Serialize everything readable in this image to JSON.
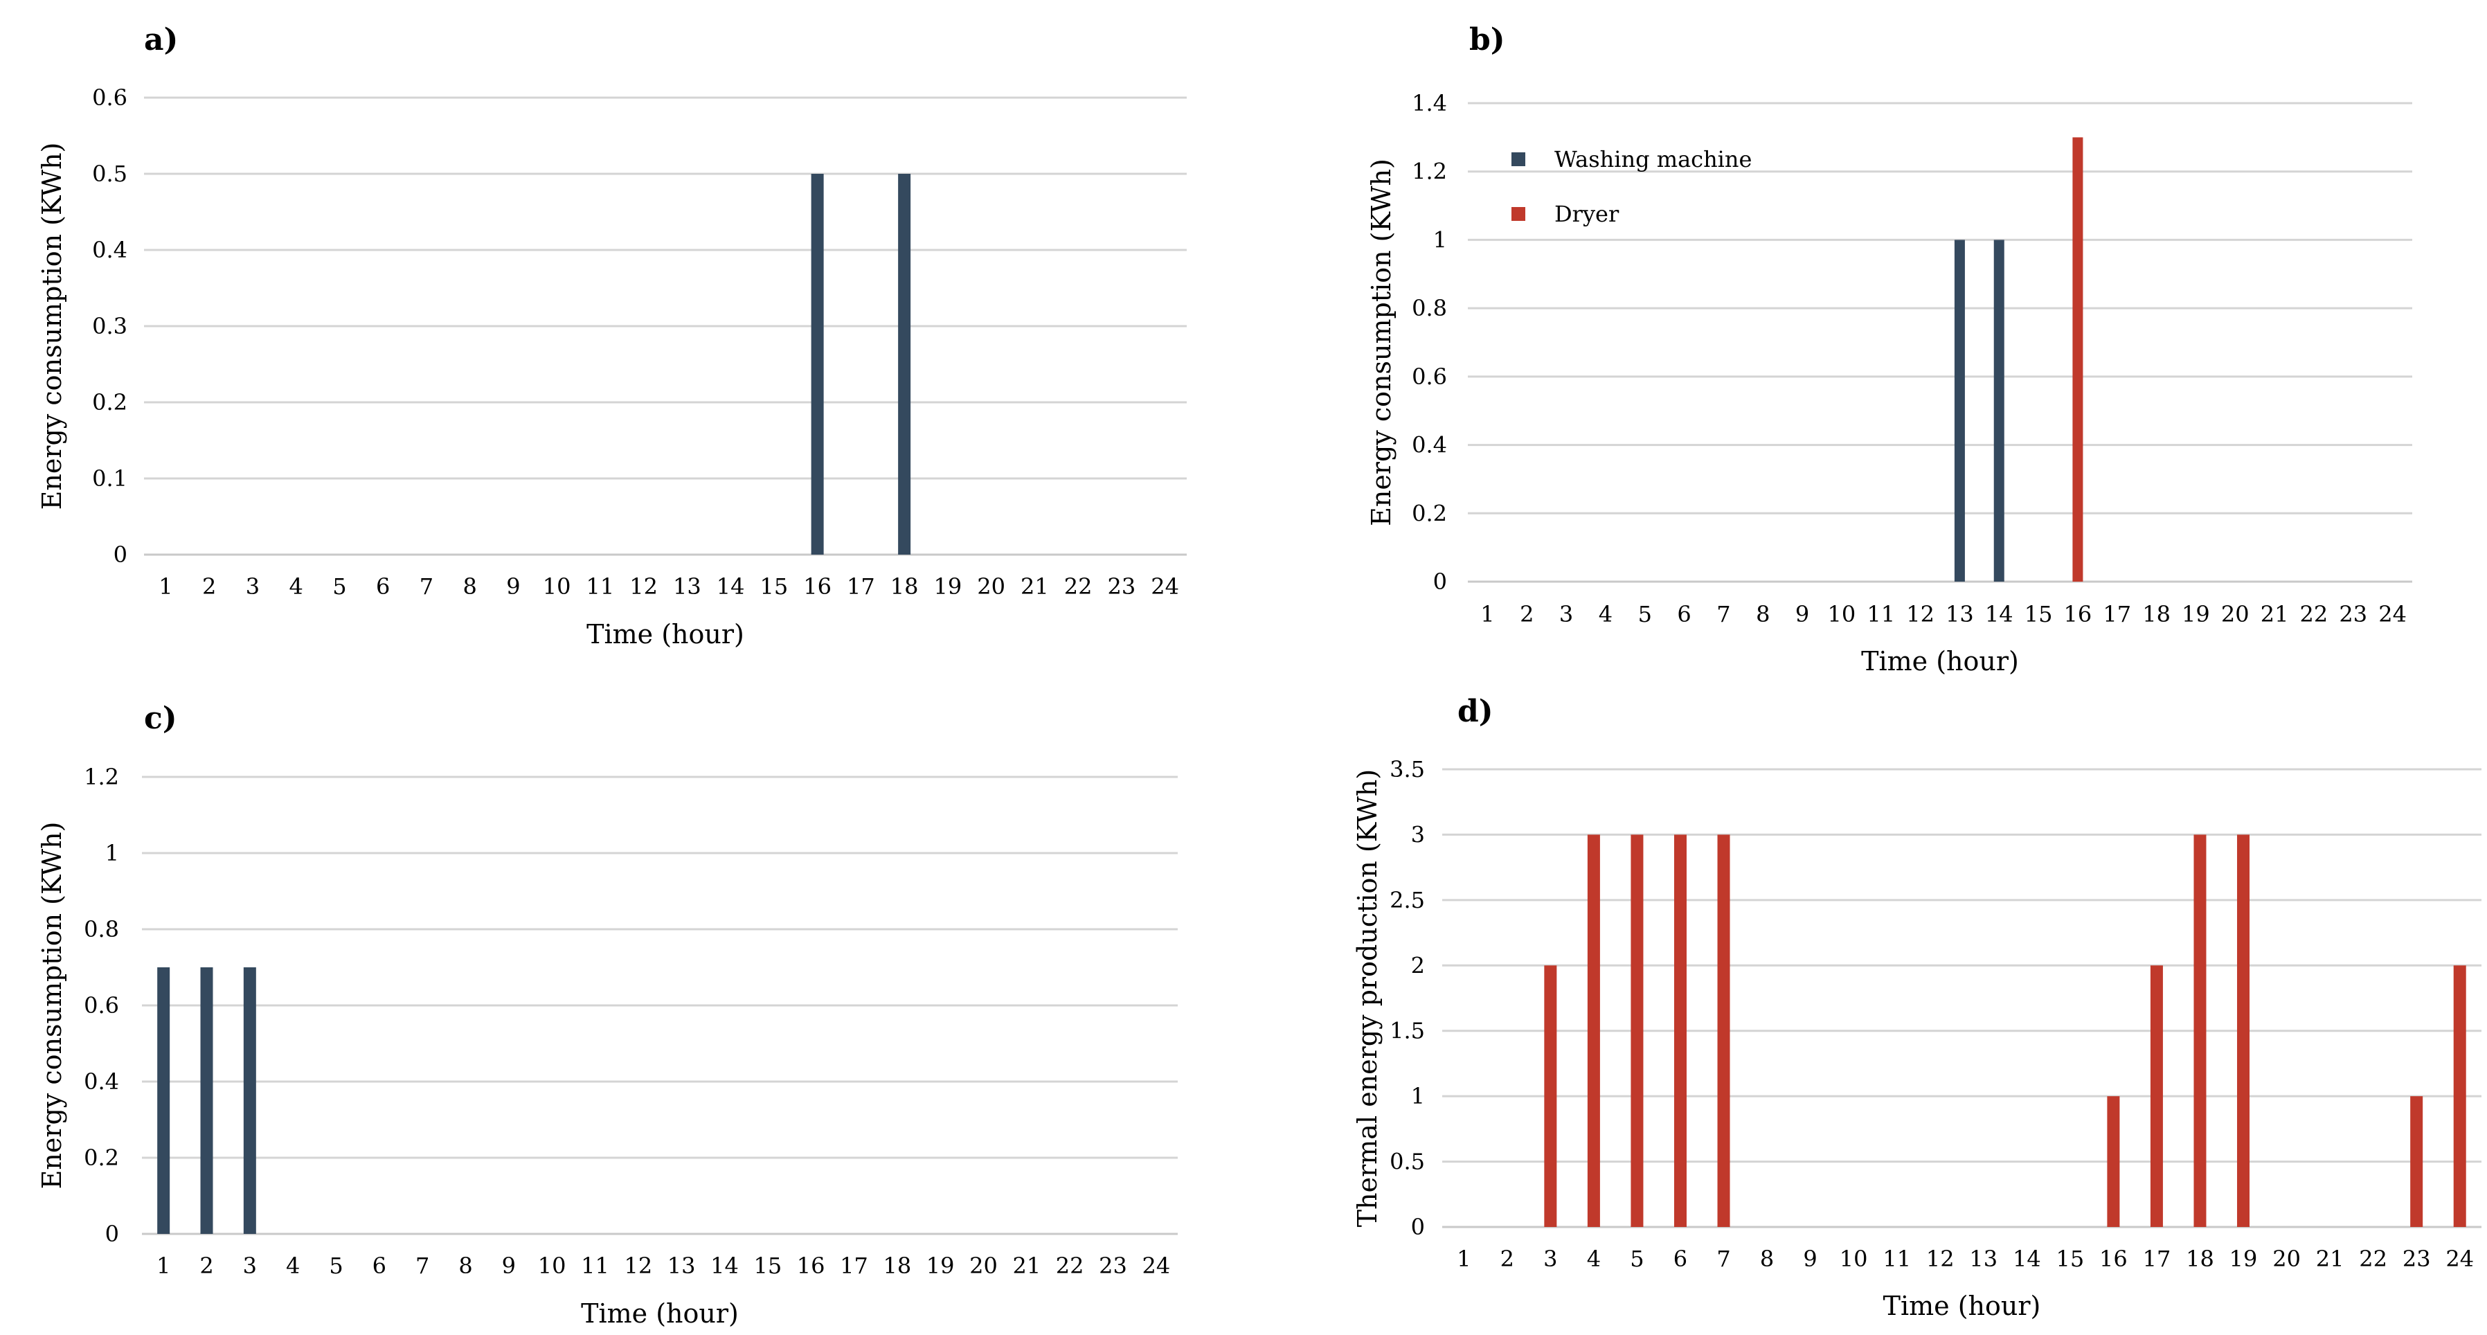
{
  "colors": {
    "navy": "#34495e",
    "red": "#c0392b"
  },
  "chart_data": [
    {
      "id": "a",
      "panel_label": "a)",
      "type": "bar",
      "xlabel": "Time (hour)",
      "ylabel": "Energy consumption (KWh)",
      "ylim": [
        0,
        0.6
      ],
      "yticks": [
        0,
        0.1,
        0.2,
        0.3,
        0.4,
        0.5,
        0.6
      ],
      "ytick_labels": [
        "0",
        "0.1",
        "0.2",
        "0.3",
        "0.4",
        "0.5",
        "0.6"
      ],
      "categories": [
        "1",
        "2",
        "3",
        "4",
        "5",
        "6",
        "7",
        "8",
        "9",
        "10",
        "11",
        "12",
        "13",
        "14",
        "15",
        "16",
        "17",
        "18",
        "19",
        "20",
        "21",
        "22",
        "23",
        "24"
      ],
      "grid": true,
      "legend": null,
      "series": [
        {
          "name": "Energy consumption",
          "color": "#34495e",
          "values": [
            0,
            0,
            0,
            0,
            0,
            0,
            0,
            0,
            0,
            0,
            0,
            0,
            0,
            0,
            0,
            0.5,
            0,
            0.5,
            0,
            0,
            0,
            0,
            0,
            0
          ]
        }
      ]
    },
    {
      "id": "b",
      "panel_label": "b)",
      "type": "bar",
      "xlabel": "Time (hour)",
      "ylabel": "Energy consumption (KWh)",
      "ylim": [
        0,
        1.4
      ],
      "yticks": [
        0,
        0.2,
        0.4,
        0.6,
        0.8,
        1,
        1.2,
        1.4
      ],
      "ytick_labels": [
        "0",
        "0.2",
        "0.4",
        "0.6",
        "0.8",
        "1",
        "1.2",
        "1.4"
      ],
      "categories": [
        "1",
        "2",
        "3",
        "4",
        "5",
        "6",
        "7",
        "8",
        "9",
        "10",
        "11",
        "12",
        "13",
        "14",
        "15",
        "16",
        "17",
        "18",
        "19",
        "20",
        "21",
        "22",
        "23",
        "24"
      ],
      "grid": true,
      "legend": "top-left",
      "series": [
        {
          "name": "Washing machine",
          "color": "#34495e",
          "values": [
            0,
            0,
            0,
            0,
            0,
            0,
            0,
            0,
            0,
            0,
            0,
            0,
            1,
            1,
            0,
            0,
            0,
            0,
            0,
            0,
            0,
            0,
            0,
            0
          ]
        },
        {
          "name": "Dryer",
          "color": "#c0392b",
          "values": [
            0,
            0,
            0,
            0,
            0,
            0,
            0,
            0,
            0,
            0,
            0,
            0,
            0,
            0,
            0,
            1.3,
            0,
            0,
            0,
            0,
            0,
            0,
            0,
            0
          ]
        }
      ]
    },
    {
      "id": "c",
      "panel_label": "c)",
      "type": "bar",
      "xlabel": "Time (hour)",
      "ylabel": "Energy consumption (KWh)",
      "ylim": [
        0,
        1.2
      ],
      "yticks": [
        0,
        0.2,
        0.4,
        0.6,
        0.8,
        1,
        1.2
      ],
      "ytick_labels": [
        "0",
        "0.2",
        "0.4",
        "0.6",
        "0.8",
        "1",
        "1.2"
      ],
      "categories": [
        "1",
        "2",
        "3",
        "4",
        "5",
        "6",
        "7",
        "8",
        "9",
        "10",
        "11",
        "12",
        "13",
        "14",
        "15",
        "16",
        "17",
        "18",
        "19",
        "20",
        "21",
        "22",
        "23",
        "24"
      ],
      "grid": true,
      "legend": null,
      "series": [
        {
          "name": "Energy consumption",
          "color": "#34495e",
          "values": [
            0.7,
            0.7,
            0.7,
            0,
            0,
            0,
            0,
            0,
            0,
            0,
            0,
            0,
            0,
            0,
            0,
            0,
            0,
            0,
            0,
            0,
            0,
            0,
            0,
            0
          ]
        }
      ]
    },
    {
      "id": "d",
      "panel_label": "d)",
      "type": "bar",
      "xlabel": "Time (hour)",
      "ylabel": "Thermal energy production (KWh)",
      "ylim": [
        0,
        3.5
      ],
      "yticks": [
        0,
        0.5,
        1,
        1.5,
        2,
        2.5,
        3,
        3.5
      ],
      "ytick_labels": [
        "0",
        "0.5",
        "1",
        "1.5",
        "2",
        "2.5",
        "3",
        "3.5"
      ],
      "categories": [
        "1",
        "2",
        "3",
        "4",
        "5",
        "6",
        "7",
        "8",
        "9",
        "10",
        "11",
        "12",
        "13",
        "14",
        "15",
        "16",
        "17",
        "18",
        "19",
        "20",
        "21",
        "22",
        "23",
        "24"
      ],
      "grid": true,
      "legend": null,
      "series": [
        {
          "name": "Thermal energy production",
          "color": "#c0392b",
          "values": [
            0,
            0,
            2,
            3,
            3,
            3,
            3,
            0,
            0,
            0,
            0,
            0,
            0,
            0,
            0,
            1,
            2,
            3,
            3,
            0,
            0,
            0,
            1,
            2
          ]
        }
      ]
    }
  ]
}
